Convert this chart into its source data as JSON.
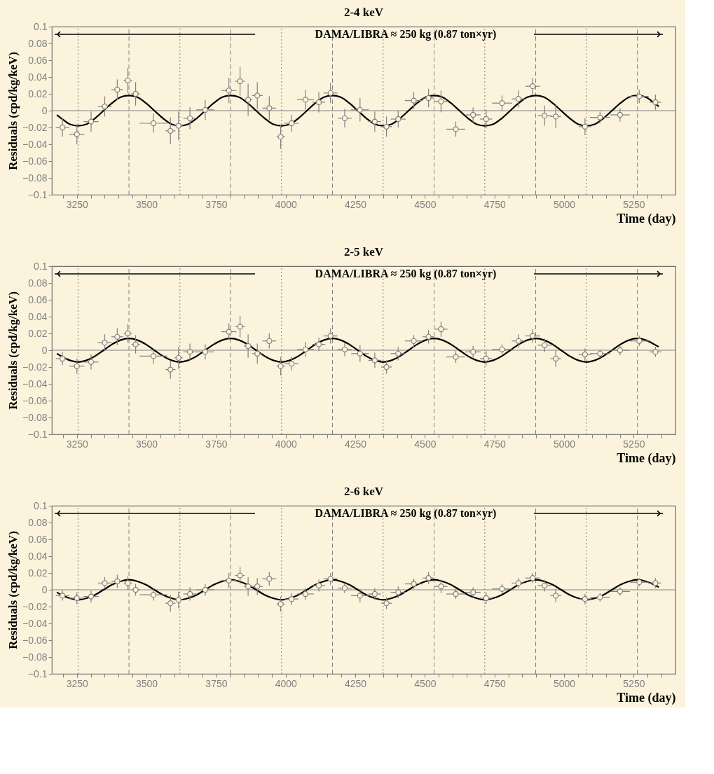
{
  "chart_data": [
    {
      "type": "scatter",
      "title": "2-4 keV",
      "xlabel": "Time (day)",
      "ylabel": "Residuals (cpd/kg/keV)",
      "xlim": [
        3160,
        5400
      ],
      "ylim": [
        -0.1,
        0.1
      ],
      "xticks": [
        {
          "value": 3200,
          "label": null
        },
        3250,
        {
          "value": 3300,
          "label": null
        },
        {
          "value": 3350,
          "label": null
        },
        {
          "value": 3400,
          "label": null
        },
        {
          "value": 3450,
          "label": null
        },
        3500,
        {
          "value": 3550,
          "label": null
        },
        {
          "value": 3600,
          "label": null
        },
        {
          "value": 3650,
          "label": null
        },
        {
          "value": 3700,
          "label": null
        },
        3750,
        {
          "value": 3800,
          "label": null
        },
        {
          "value": 3850,
          "label": null
        },
        {
          "value": 3900,
          "label": null
        },
        {
          "value": 3950,
          "label": null
        },
        4000,
        {
          "value": 4050,
          "label": null
        },
        {
          "value": 4100,
          "label": null
        },
        {
          "value": 4150,
          "label": null
        },
        {
          "value": 4200,
          "label": null
        },
        4250,
        {
          "value": 4300,
          "label": null
        },
        {
          "value": 4350,
          "label": null
        },
        {
          "value": 4400,
          "label": null
        },
        {
          "value": 4450,
          "label": null
        },
        4500,
        {
          "value": 4550,
          "label": null
        },
        {
          "value": 4600,
          "label": null
        },
        {
          "value": 4650,
          "label": null
        },
        {
          "value": 4700,
          "label": null
        },
        4750,
        {
          "value": 4800,
          "label": null
        },
        {
          "value": 4850,
          "label": null
        },
        {
          "value": 4900,
          "label": null
        },
        {
          "value": 4950,
          "label": null
        },
        5000,
        {
          "value": 5050,
          "label": null
        },
        {
          "value": 5100,
          "label": null
        },
        {
          "value": 5150,
          "label": null
        },
        {
          "value": 5200,
          "label": null
        },
        5250,
        {
          "value": 5300,
          "label": null
        },
        {
          "value": 5350,
          "label": null
        }
      ],
      "yticks": [
        -0.1,
        -0.08,
        -0.06,
        -0.04,
        -0.02,
        0,
        0.02,
        0.04,
        0.06,
        0.08,
        0.1
      ],
      "annotations": [
        "DAMA/LIBRA ≈ 250 kg   (0.87 ton×yr)"
      ],
      "ref_lines": [
        {
          "axis": "y",
          "value": 0,
          "line_style": "solid",
          "color": "#808080"
        },
        {
          "axis": "x",
          "value": 3254,
          "line_style": "dotted",
          "color": "#808080"
        },
        {
          "axis": "x",
          "value": 3620,
          "line_style": "dotted",
          "color": "#808080"
        },
        {
          "axis": "x",
          "value": 3985,
          "line_style": "dotted",
          "color": "#808080"
        },
        {
          "axis": "x",
          "value": 4350,
          "line_style": "dotted",
          "color": "#808080"
        },
        {
          "axis": "x",
          "value": 4715,
          "line_style": "dotted",
          "color": "#808080"
        },
        {
          "axis": "x",
          "value": 5080,
          "line_style": "dotted",
          "color": "#808080"
        },
        {
          "axis": "x",
          "value": 3437,
          "line_style": "dashed",
          "color": "#808080"
        },
        {
          "axis": "x",
          "value": 3802,
          "line_style": "dashed",
          "color": "#808080"
        },
        {
          "axis": "x",
          "value": 4168,
          "line_style": "dashed",
          "color": "#808080"
        },
        {
          "axis": "x",
          "value": 4533,
          "line_style": "dashed",
          "color": "#808080"
        },
        {
          "axis": "x",
          "value": 4898,
          "line_style": "dashed",
          "color": "#808080"
        },
        {
          "axis": "x",
          "value": 5263,
          "line_style": "dashed",
          "color": "#808080"
        }
      ],
      "series": [
        {
          "type": "line",
          "color": "#000000",
          "line_style": "solid",
          "x": [
            3178,
            3193.5,
            3223.9,
            3254.4,
            3284.8,
            3315.3,
            3345.7,
            3376.1,
            3406.6,
            3437.0,
            3467.4,
            3497.9,
            3528.3,
            3558.8,
            3589.2,
            3619.6,
            3650.1,
            3680.5,
            3710.9,
            3741.4,
            3771.8,
            3802.3,
            3832.7,
            3863.1,
            3893.6,
            3924.0,
            3954.4,
            3984.9,
            4015.3,
            4045.8,
            4076.2,
            4106.6,
            4137.1,
            4167.5,
            4197.9,
            4228.4,
            4258.8,
            4289.3,
            4319.7,
            4350.1,
            4380.6,
            4411.0,
            4441.4,
            4471.9,
            4502.3,
            4532.8,
            4563.2,
            4593.6,
            4624.1,
            4654.5,
            4684.9,
            4715.4,
            4745.8,
            4776.3,
            4806.7,
            4837.1,
            4867.6,
            4898.0,
            4928.4,
            4958.9,
            4989.3,
            5019.8,
            5050.2,
            5080.6,
            5111.1,
            5141.5,
            5171.9,
            5202.4,
            5232.8,
            5263.3,
            5293.7,
            5324.1,
            5340
          ],
          "values": [
            -0.005,
            -0.009,
            -0.016,
            -0.018,
            -0.016,
            -0.009,
            0,
            0.009,
            0.016,
            0.018,
            0.016,
            0.009,
            0,
            -0.009,
            -0.016,
            -0.018,
            -0.016,
            -0.009,
            0,
            0.009,
            0.016,
            0.018,
            0.016,
            0.009,
            0,
            -0.009,
            -0.016,
            -0.018,
            -0.016,
            -0.009,
            0,
            0.009,
            0.016,
            0.018,
            0.016,
            0.009,
            0,
            -0.009,
            -0.016,
            -0.018,
            -0.016,
            -0.009,
            0,
            0.009,
            0.016,
            0.018,
            0.016,
            0.009,
            0,
            -0.009,
            -0.016,
            -0.018,
            -0.016,
            -0.009,
            0,
            0.009,
            0.016,
            0.018,
            0.016,
            0.009,
            0,
            -0.009,
            -0.016,
            -0.018,
            -0.016,
            -0.009,
            0,
            0.009,
            0.016,
            0.018,
            0.016,
            0.009,
            0.005
          ]
        },
        {
          "type": "scatter",
          "color": "#808080",
          "marker": "circle",
          "x": [
            3198,
            3250,
            3301,
            3350,
            3395,
            3433,
            3461,
            3525,
            3586,
            3615,
            3656,
            3711,
            3796,
            3836,
            3865,
            3898,
            3941,
            3982,
            4021,
            4071,
            4119,
            4161,
            4212,
            4267,
            4320,
            4362,
            4404,
            4460,
            4513,
            4558,
            4611,
            4673,
            4720,
            4777,
            4836,
            4887,
            4930,
            4970,
            5075,
            5129,
            5201,
            5270,
            5328
          ],
          "values": [
            -0.02,
            -0.028,
            -0.013,
            0.005,
            0.025,
            0.036,
            0.02,
            -0.015,
            -0.024,
            -0.018,
            -0.009,
            0.001,
            0.024,
            0.035,
            0.013,
            0.018,
            0.003,
            -0.031,
            -0.015,
            0.013,
            0.01,
            0.021,
            -0.009,
            0.001,
            -0.013,
            -0.019,
            -0.01,
            0.012,
            0.015,
            0.011,
            -0.022,
            -0.005,
            -0.01,
            0.009,
            0.014,
            0.029,
            -0.006,
            -0.007,
            -0.019,
            -0.008,
            -0.005,
            0.017,
            0.01
          ],
          "errors": [
            0.011,
            0.012,
            0.012,
            0.012,
            0.012,
            0.015,
            0.014,
            0.011,
            0.016,
            0.017,
            0.013,
            0.012,
            0.015,
            0.017,
            0.019,
            0.016,
            0.014,
            0.014,
            0.01,
            0.012,
            0.012,
            0.012,
            0.011,
            0.014,
            0.012,
            0.012,
            0.01,
            0.01,
            0.011,
            0.013,
            0.009,
            0.009,
            0.011,
            0.009,
            0.01,
            0.01,
            0.012,
            0.014,
            0.01,
            0.007,
            0.008,
            0.008,
            0.009
          ],
          "xerrors": [
            24,
            27,
            27,
            25,
            21,
            15,
            15,
            50,
            18,
            15,
            24,
            32,
            27,
            17,
            15,
            19,
            25,
            15,
            25,
            30,
            23,
            25,
            25,
            32,
            23,
            19,
            27,
            32,
            21,
            23,
            34,
            27,
            22,
            36,
            24,
            26,
            25,
            19,
            23,
            36,
            35,
            34,
            21
          ]
        }
      ]
    },
    {
      "type": "scatter",
      "title": "2-5 keV",
      "xlabel": "Time (day)",
      "ylabel": "Residuals (cpd/kg/keV)",
      "xlim": [
        3160,
        5400
      ],
      "ylim": [
        -0.1,
        0.1
      ],
      "xticks": [
        {
          "value": 3200,
          "label": null
        },
        3250,
        {
          "value": 3300,
          "label": null
        },
        {
          "value": 3350,
          "label": null
        },
        {
          "value": 3400,
          "label": null
        },
        {
          "value": 3450,
          "label": null
        },
        3500,
        {
          "value": 3550,
          "label": null
        },
        {
          "value": 3600,
          "label": null
        },
        {
          "value": 3650,
          "label": null
        },
        {
          "value": 3700,
          "label": null
        },
        3750,
        {
          "value": 3800,
          "label": null
        },
        {
          "value": 3850,
          "label": null
        },
        {
          "value": 3900,
          "label": null
        },
        {
          "value": 3950,
          "label": null
        },
        4000,
        {
          "value": 4050,
          "label": null
        },
        {
          "value": 4100,
          "label": null
        },
        {
          "value": 4150,
          "label": null
        },
        {
          "value": 4200,
          "label": null
        },
        4250,
        {
          "value": 4300,
          "label": null
        },
        {
          "value": 4350,
          "label": null
        },
        {
          "value": 4400,
          "label": null
        },
        {
          "value": 4450,
          "label": null
        },
        4500,
        {
          "value": 4550,
          "label": null
        },
        {
          "value": 4600,
          "label": null
        },
        {
          "value": 4650,
          "label": null
        },
        {
          "value": 4700,
          "label": null
        },
        4750,
        {
          "value": 4800,
          "label": null
        },
        {
          "value": 4850,
          "label": null
        },
        {
          "value": 4900,
          "label": null
        },
        {
          "value": 4950,
          "label": null
        },
        5000,
        {
          "value": 5050,
          "label": null
        },
        {
          "value": 5100,
          "label": null
        },
        {
          "value": 5150,
          "label": null
        },
        {
          "value": 5200,
          "label": null
        },
        5250,
        {
          "value": 5300,
          "label": null
        },
        {
          "value": 5350,
          "label": null
        }
      ],
      "yticks": [
        -0.1,
        -0.08,
        -0.06,
        -0.04,
        -0.02,
        0,
        0.02,
        0.04,
        0.06,
        0.08,
        0.1
      ],
      "annotations": [
        "DAMA/LIBRA ≈ 250 kg   (0.87 ton×yr)"
      ],
      "ref_lines": [
        {
          "axis": "y",
          "value": 0,
          "line_style": "solid",
          "color": "#808080"
        },
        {
          "axis": "x",
          "value": 3254,
          "line_style": "dotted",
          "color": "#808080"
        },
        {
          "axis": "x",
          "value": 3620,
          "line_style": "dotted",
          "color": "#808080"
        },
        {
          "axis": "x",
          "value": 3985,
          "line_style": "dotted",
          "color": "#808080"
        },
        {
          "axis": "x",
          "value": 4350,
          "line_style": "dotted",
          "color": "#808080"
        },
        {
          "axis": "x",
          "value": 4715,
          "line_style": "dotted",
          "color": "#808080"
        },
        {
          "axis": "x",
          "value": 5080,
          "line_style": "dotted",
          "color": "#808080"
        },
        {
          "axis": "x",
          "value": 3437,
          "line_style": "dashed",
          "color": "#808080"
        },
        {
          "axis": "x",
          "value": 3802,
          "line_style": "dashed",
          "color": "#808080"
        },
        {
          "axis": "x",
          "value": 4168,
          "line_style": "dashed",
          "color": "#808080"
        },
        {
          "axis": "x",
          "value": 4533,
          "line_style": "dashed",
          "color": "#808080"
        },
        {
          "axis": "x",
          "value": 4898,
          "line_style": "dashed",
          "color": "#808080"
        },
        {
          "axis": "x",
          "value": 5263,
          "line_style": "dashed",
          "color": "#808080"
        }
      ],
      "series": [
        {
          "type": "line",
          "color": "#000000",
          "line_style": "solid",
          "x": [
            3178,
            3193.5,
            3223.9,
            3254.4,
            3284.8,
            3315.3,
            3345.7,
            3376.1,
            3406.6,
            3437.0,
            3467.4,
            3497.9,
            3528.3,
            3558.8,
            3589.2,
            3619.6,
            3650.1,
            3680.5,
            3710.9,
            3741.4,
            3771.8,
            3802.3,
            3832.7,
            3863.1,
            3893.6,
            3924.0,
            3954.4,
            3984.9,
            4015.3,
            4045.8,
            4076.2,
            4106.6,
            4137.1,
            4167.5,
            4197.9,
            4228.4,
            4258.8,
            4289.3,
            4319.7,
            4350.1,
            4380.6,
            4411.0,
            4441.4,
            4471.9,
            4502.3,
            4532.8,
            4563.2,
            4593.6,
            4624.1,
            4654.5,
            4684.9,
            4715.4,
            4745.8,
            4776.3,
            4806.7,
            4837.1,
            4867.6,
            4898.0,
            4928.4,
            4958.9,
            4989.3,
            5019.8,
            5050.2,
            5080.6,
            5111.1,
            5141.5,
            5171.9,
            5202.4,
            5232.8,
            5263.3,
            5293.7,
            5324.1,
            5340
          ],
          "values": [
            -0.004,
            -0.007,
            -0.012,
            -0.014,
            -0.012,
            -0.007,
            0,
            0.007,
            0.012,
            0.014,
            0.012,
            0.007,
            0,
            -0.007,
            -0.012,
            -0.014,
            -0.012,
            -0.007,
            0,
            0.007,
            0.012,
            0.014,
            0.012,
            0.007,
            0,
            -0.007,
            -0.012,
            -0.014,
            -0.012,
            -0.007,
            0,
            0.007,
            0.012,
            0.014,
            0.012,
            0.007,
            0,
            -0.007,
            -0.012,
            -0.014,
            -0.012,
            -0.007,
            0,
            0.007,
            0.012,
            0.014,
            0.012,
            0.007,
            0,
            -0.007,
            -0.012,
            -0.014,
            -0.012,
            -0.007,
            0,
            0.007,
            0.012,
            0.014,
            0.012,
            0.007,
            0,
            -0.007,
            -0.012,
            -0.014,
            -0.012,
            -0.007,
            0,
            0.007,
            0.012,
            0.014,
            0.012,
            0.007,
            0.004
          ]
        },
        {
          "type": "scatter",
          "color": "#808080",
          "marker": "circle",
          "x": [
            3198,
            3250,
            3301,
            3350,
            3395,
            3433,
            3461,
            3525,
            3586,
            3615,
            3656,
            3711,
            3796,
            3836,
            3865,
            3898,
            3941,
            3982,
            4021,
            4071,
            4119,
            4161,
            4212,
            4267,
            4320,
            4362,
            4404,
            4460,
            4513,
            4558,
            4611,
            4673,
            4720,
            4777,
            4836,
            4887,
            4930,
            4970,
            5075,
            5129,
            5201,
            5270,
            5328
          ],
          "values": [
            -0.01,
            -0.019,
            -0.014,
            0.009,
            0.016,
            0.02,
            0.007,
            -0.007,
            -0.023,
            -0.009,
            -0.002,
            -0.002,
            0.022,
            0.028,
            0.005,
            -0.004,
            0.011,
            -0.019,
            -0.016,
            0.001,
            0.007,
            0.017,
            0.001,
            -0.004,
            -0.012,
            -0.02,
            -0.004,
            0.011,
            0.016,
            0.025,
            -0.008,
            -0.002,
            -0.01,
            0.001,
            0.011,
            0.017,
            0.006,
            -0.01,
            -0.005,
            -0.004,
            0.0,
            0.011,
            -0.002
          ],
          "errors": [
            0.008,
            0.009,
            0.009,
            0.01,
            0.01,
            0.011,
            0.011,
            0.009,
            0.011,
            0.013,
            0.01,
            0.009,
            0.01,
            0.013,
            0.014,
            0.012,
            0.009,
            0.011,
            0.008,
            0.009,
            0.008,
            0.009,
            0.008,
            0.01,
            0.009,
            0.008,
            0.008,
            0.007,
            0.008,
            0.009,
            0.007,
            0.007,
            0.009,
            0.006,
            0.008,
            0.008,
            0.008,
            0.01,
            0.007,
            0.005,
            0.006,
            0.006,
            0.006
          ],
          "xerrors": [
            24,
            27,
            27,
            25,
            21,
            15,
            15,
            50,
            18,
            15,
            24,
            32,
            27,
            17,
            15,
            19,
            25,
            15,
            25,
            30,
            23,
            25,
            25,
            32,
            23,
            19,
            27,
            32,
            21,
            23,
            34,
            27,
            22,
            36,
            24,
            26,
            25,
            19,
            23,
            36,
            35,
            34,
            21
          ]
        }
      ]
    },
    {
      "type": "scatter",
      "title": "2-6 keV",
      "xlabel": "Time (day)",
      "ylabel": "Residuals (cpd/kg/keV)",
      "xlim": [
        3160,
        5400
      ],
      "ylim": [
        -0.1,
        0.1
      ],
      "xticks": [
        {
          "value": 3200,
          "label": null
        },
        3250,
        {
          "value": 3300,
          "label": null
        },
        {
          "value": 3350,
          "label": null
        },
        {
          "value": 3400,
          "label": null
        },
        {
          "value": 3450,
          "label": null
        },
        3500,
        {
          "value": 3550,
          "label": null
        },
        {
          "value": 3600,
          "label": null
        },
        {
          "value": 3650,
          "label": null
        },
        {
          "value": 3700,
          "label": null
        },
        3750,
        {
          "value": 3800,
          "label": null
        },
        {
          "value": 3850,
          "label": null
        },
        {
          "value": 3900,
          "label": null
        },
        {
          "value": 3950,
          "label": null
        },
        4000,
        {
          "value": 4050,
          "label": null
        },
        {
          "value": 4100,
          "label": null
        },
        {
          "value": 4150,
          "label": null
        },
        {
          "value": 4200,
          "label": null
        },
        4250,
        {
          "value": 4300,
          "label": null
        },
        {
          "value": 4350,
          "label": null
        },
        {
          "value": 4400,
          "label": null
        },
        {
          "value": 4450,
          "label": null
        },
        4500,
        {
          "value": 4550,
          "label": null
        },
        {
          "value": 4600,
          "label": null
        },
        {
          "value": 4650,
          "label": null
        },
        {
          "value": 4700,
          "label": null
        },
        4750,
        {
          "value": 4800,
          "label": null
        },
        {
          "value": 4850,
          "label": null
        },
        {
          "value": 4900,
          "label": null
        },
        {
          "value": 4950,
          "label": null
        },
        5000,
        {
          "value": 5050,
          "label": null
        },
        {
          "value": 5100,
          "label": null
        },
        {
          "value": 5150,
          "label": null
        },
        {
          "value": 5200,
          "label": null
        },
        5250,
        {
          "value": 5300,
          "label": null
        },
        {
          "value": 5350,
          "label": null
        }
      ],
      "yticks": [
        -0.1,
        -0.08,
        -0.06,
        -0.04,
        -0.02,
        0,
        0.02,
        0.04,
        0.06,
        0.08,
        0.1
      ],
      "annotations": [
        "DAMA/LIBRA ≈ 250 kg   (0.87 ton×yr)"
      ],
      "ref_lines": [
        {
          "axis": "y",
          "value": 0,
          "line_style": "solid",
          "color": "#808080"
        },
        {
          "axis": "x",
          "value": 3254,
          "line_style": "dotted",
          "color": "#808080"
        },
        {
          "axis": "x",
          "value": 3620,
          "line_style": "dotted",
          "color": "#808080"
        },
        {
          "axis": "x",
          "value": 3985,
          "line_style": "dotted",
          "color": "#808080"
        },
        {
          "axis": "x",
          "value": 4350,
          "line_style": "dotted",
          "color": "#808080"
        },
        {
          "axis": "x",
          "value": 4715,
          "line_style": "dotted",
          "color": "#808080"
        },
        {
          "axis": "x",
          "value": 5080,
          "line_style": "dotted",
          "color": "#808080"
        },
        {
          "axis": "x",
          "value": 3437,
          "line_style": "dashed",
          "color": "#808080"
        },
        {
          "axis": "x",
          "value": 3802,
          "line_style": "dashed",
          "color": "#808080"
        },
        {
          "axis": "x",
          "value": 4168,
          "line_style": "dashed",
          "color": "#808080"
        },
        {
          "axis": "x",
          "value": 4533,
          "line_style": "dashed",
          "color": "#808080"
        },
        {
          "axis": "x",
          "value": 4898,
          "line_style": "dashed",
          "color": "#808080"
        },
        {
          "axis": "x",
          "value": 5263,
          "line_style": "dashed",
          "color": "#808080"
        }
      ],
      "series": [
        {
          "type": "line",
          "color": "#000000",
          "line_style": "solid",
          "x": [
            3178,
            3193.5,
            3223.9,
            3254.4,
            3284.8,
            3315.3,
            3345.7,
            3376.1,
            3406.6,
            3437.0,
            3467.4,
            3497.9,
            3528.3,
            3558.8,
            3589.2,
            3619.6,
            3650.1,
            3680.5,
            3710.9,
            3741.4,
            3771.8,
            3802.3,
            3832.7,
            3863.1,
            3893.6,
            3924.0,
            3954.4,
            3984.9,
            4015.3,
            4045.8,
            4076.2,
            4106.6,
            4137.1,
            4167.5,
            4197.9,
            4228.4,
            4258.8,
            4289.3,
            4319.7,
            4350.1,
            4380.6,
            4411.0,
            4441.4,
            4471.9,
            4502.3,
            4532.8,
            4563.2,
            4593.6,
            4624.1,
            4654.5,
            4684.9,
            4715.4,
            4745.8,
            4776.3,
            4806.7,
            4837.1,
            4867.6,
            4898.0,
            4928.4,
            4958.9,
            4989.3,
            5019.8,
            5050.2,
            5080.6,
            5111.1,
            5141.5,
            5171.9,
            5202.4,
            5232.8,
            5263.3,
            5293.7,
            5324.1,
            5340
          ],
          "values": [
            -0.003,
            -0.006,
            -0.01,
            -0.012,
            -0.01,
            -0.006,
            0,
            0.006,
            0.01,
            0.012,
            0.01,
            0.006,
            0,
            -0.006,
            -0.01,
            -0.012,
            -0.01,
            -0.006,
            0,
            0.006,
            0.01,
            0.012,
            0.01,
            0.006,
            0,
            -0.006,
            -0.01,
            -0.012,
            -0.01,
            -0.006,
            0,
            0.006,
            0.01,
            0.012,
            0.01,
            0.006,
            0,
            -0.006,
            -0.01,
            -0.012,
            -0.01,
            -0.006,
            0,
            0.006,
            0.01,
            0.012,
            0.01,
            0.006,
            0,
            -0.006,
            -0.01,
            -0.012,
            -0.01,
            -0.006,
            0,
            0.006,
            0.01,
            0.012,
            0.01,
            0.006,
            0,
            -0.006,
            -0.01,
            -0.012,
            -0.01,
            -0.006,
            0,
            0.006,
            0.01,
            0.012,
            0.01,
            0.006,
            0.003
          ]
        },
        {
          "type": "scatter",
          "color": "#808080",
          "marker": "circle",
          "x": [
            3198,
            3250,
            3301,
            3350,
            3395,
            3433,
            3461,
            3525,
            3586,
            3615,
            3656,
            3711,
            3796,
            3836,
            3865,
            3898,
            3941,
            3982,
            4021,
            4071,
            4119,
            4161,
            4212,
            4267,
            4320,
            4362,
            4404,
            4460,
            4513,
            4558,
            4611,
            4673,
            4720,
            4777,
            4836,
            4887,
            4930,
            4970,
            5075,
            5129,
            5201,
            5270,
            5328
          ],
          "values": [
            -0.007,
            -0.01,
            -0.008,
            0.008,
            0.01,
            0.008,
            0.0,
            -0.006,
            -0.016,
            -0.012,
            -0.005,
            0.0,
            0.011,
            0.017,
            0.004,
            0.004,
            0.013,
            -0.017,
            -0.011,
            -0.005,
            0.005,
            0.013,
            0.002,
            -0.007,
            -0.005,
            -0.016,
            -0.003,
            0.007,
            0.014,
            0.004,
            -0.005,
            -0.003,
            -0.01,
            0.001,
            0.008,
            0.014,
            0.005,
            -0.007,
            -0.011,
            -0.009,
            -0.002,
            0.009,
            0.008
          ],
          "errors": [
            0.006,
            0.007,
            0.007,
            0.007,
            0.008,
            0.008,
            0.007,
            0.007,
            0.01,
            0.01,
            0.008,
            0.007,
            0.009,
            0.01,
            0.011,
            0.01,
            0.008,
            0.009,
            0.007,
            0.007,
            0.007,
            0.007,
            0.006,
            0.008,
            0.007,
            0.007,
            0.007,
            0.006,
            0.007,
            0.008,
            0.006,
            0.006,
            0.007,
            0.006,
            0.006,
            0.006,
            0.007,
            0.008,
            0.006,
            0.005,
            0.005,
            0.005,
            0.006
          ],
          "xerrors": [
            24,
            27,
            27,
            25,
            21,
            15,
            15,
            50,
            18,
            15,
            24,
            32,
            27,
            17,
            15,
            19,
            25,
            15,
            25,
            30,
            23,
            25,
            25,
            32,
            23,
            19,
            27,
            32,
            21,
            23,
            34,
            27,
            22,
            36,
            24,
            26,
            25,
            19,
            23,
            36,
            35,
            34,
            21
          ]
        }
      ]
    }
  ]
}
